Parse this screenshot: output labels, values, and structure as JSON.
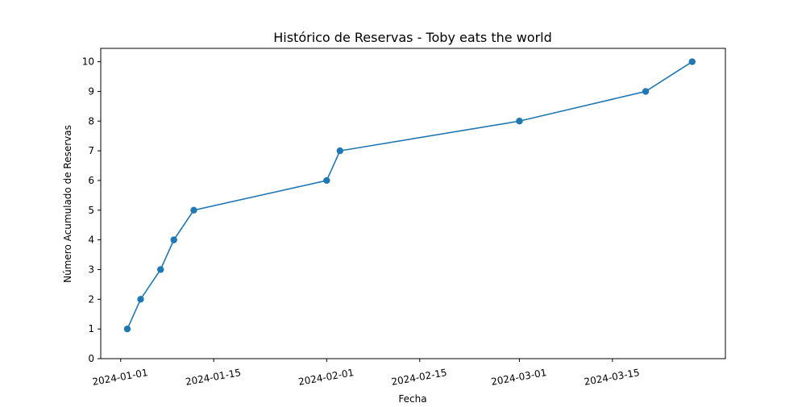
{
  "chart_data": {
    "type": "line",
    "title": "Histórico de Reservas - Toby eats the world",
    "xlabel": "Fecha",
    "ylabel": "Número Acumulado de Reservas",
    "x_axis_type": "date",
    "x_ticks": [
      "2024-01-01",
      "2024-01-15",
      "2024-02-01",
      "2024-02-15",
      "2024-03-01",
      "2024-03-15"
    ],
    "y_ticks": [
      0,
      1,
      2,
      3,
      4,
      5,
      6,
      7,
      8,
      9,
      10
    ],
    "xlim": [
      "2023-12-29",
      "2024-04-01"
    ],
    "ylim": [
      0,
      10.45
    ],
    "grid": false,
    "legend": "none",
    "x_tick_rotation": "slight",
    "series": [
      {
        "color": "#1f77b4",
        "marker": "circle",
        "points": [
          {
            "x": "2024-01-02",
            "y": 1
          },
          {
            "x": "2024-01-04",
            "y": 2
          },
          {
            "x": "2024-01-07",
            "y": 3
          },
          {
            "x": "2024-01-09",
            "y": 4
          },
          {
            "x": "2024-01-12",
            "y": 5
          },
          {
            "x": "2024-02-01",
            "y": 6
          },
          {
            "x": "2024-02-03",
            "y": 7
          },
          {
            "x": "2024-03-01",
            "y": 8
          },
          {
            "x": "2024-03-20",
            "y": 9
          },
          {
            "x": "2024-03-27",
            "y": 10
          }
        ]
      }
    ]
  }
}
